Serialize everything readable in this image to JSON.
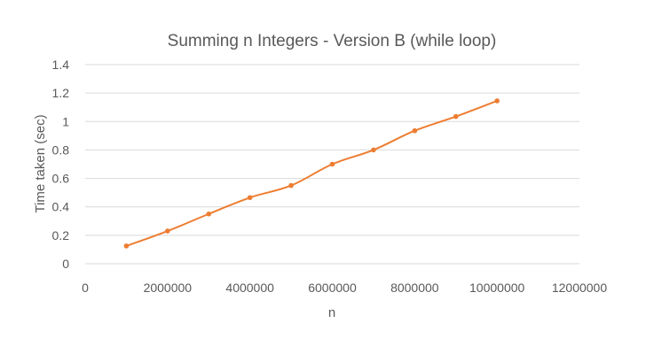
{
  "chart_data": {
    "type": "line",
    "title": "Summing n Integers - Version B  (while loop)",
    "xlabel": "n",
    "ylabel": "Time taken (sec)",
    "x": [
      1000000,
      2000000,
      3000000,
      4000000,
      5000000,
      6000000,
      7000000,
      8000000,
      9000000,
      10000000
    ],
    "series": [
      {
        "values": [
          0.125,
          0.23,
          0.35,
          0.465,
          0.55,
          0.7,
          0.8,
          0.935,
          1.035,
          1.145
        ]
      }
    ],
    "xlim": [
      0,
      12000000
    ],
    "ylim": [
      0,
      1.4
    ],
    "x_ticks": [
      "0",
      "2000000",
      "4000000",
      "6000000",
      "8000000",
      "10000000",
      "12000000"
    ],
    "y_ticks": [
      "0",
      "0.2",
      "0.4",
      "0.6",
      "0.8",
      "1",
      "1.2",
      "1.4"
    ],
    "grid": "horizontal",
    "legend": "none",
    "colors": {
      "line": "#ED7D31",
      "grid": "#D9D9D9",
      "text": "#595959"
    }
  }
}
